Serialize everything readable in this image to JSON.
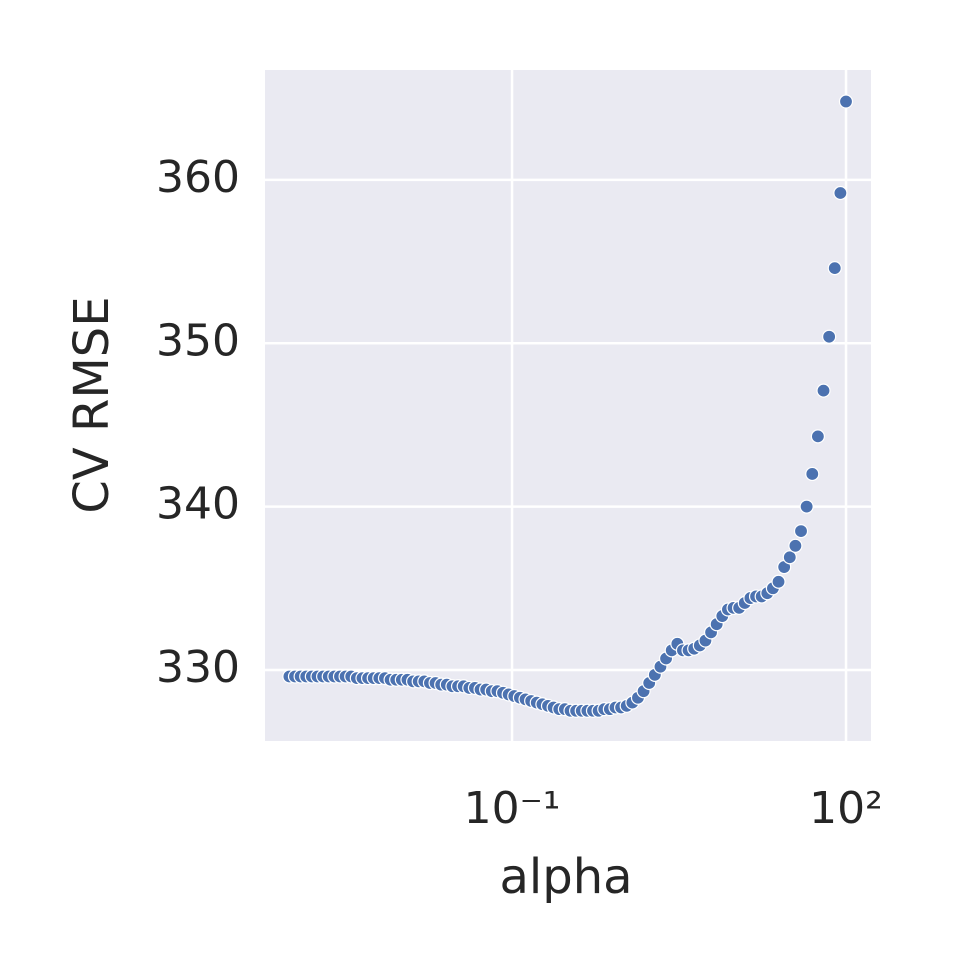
{
  "chart_data": {
    "type": "scatter",
    "xlabel": "alpha",
    "ylabel": "CV RMSE",
    "xscale": "log",
    "grid": true,
    "color": "#4c72b0",
    "xlim": [
      0.000604,
      167.7
    ],
    "ylim": [
      325.65,
      366.73
    ],
    "xticks": [
      {
        "value": 0.1,
        "label": "10⁻¹"
      },
      {
        "value": 100,
        "label": "10²"
      }
    ],
    "yticks": [
      330,
      340,
      350,
      360
    ],
    "x": [
      0.001,
      0.001123,
      0.001262,
      0.001417,
      0.001592,
      0.001789,
      0.002009,
      0.002257,
      0.002535,
      0.002848,
      0.003199,
      0.003594,
      0.004037,
      0.004535,
      0.005094,
      0.005722,
      0.006428,
      0.007221,
      0.008111,
      0.009112,
      0.01024,
      0.0115,
      0.01292,
      0.01451,
      0.0163,
      0.01831,
      0.02057,
      0.0231,
      0.02595,
      0.02915,
      0.03275,
      0.03678,
      0.04132,
      0.04642,
      0.05214,
      0.05857,
      0.06579,
      0.07391,
      0.08302,
      0.09326,
      0.1048,
      0.1177,
      0.1322,
      0.1485,
      0.1668,
      0.1874,
      0.2105,
      0.2364,
      0.2656,
      0.2984,
      0.3352,
      0.3765,
      0.4229,
      0.4751,
      0.5337,
      0.5995,
      0.6734,
      0.7565,
      0.8498,
      0.9546,
      1.072,
      1.205,
      1.353,
      1.52,
      1.707,
      1.918,
      2.154,
      2.42,
      2.719,
      3.054,
      3.43,
      3.853,
      4.329,
      4.863,
      5.462,
      6.136,
      6.893,
      7.743,
      8.697,
      9.77,
      10.97,
      12.33,
      13.85,
      15.56,
      17.48,
      19.63,
      22.05,
      24.77,
      27.83,
      31.26,
      35.11,
      39.44,
      44.31,
      49.77,
      55.91,
      62.8,
      70.55,
      79.25,
      89.02,
      100
    ],
    "y": [
      329.6,
      329.6,
      329.6,
      329.6,
      329.6,
      329.6,
      329.6,
      329.6,
      329.6,
      329.6,
      329.6,
      329.6,
      329.5,
      329.5,
      329.5,
      329.5,
      329.5,
      329.5,
      329.4,
      329.4,
      329.4,
      329.4,
      329.3,
      329.3,
      329.3,
      329.2,
      329.2,
      329.1,
      329.1,
      329.0,
      329.0,
      329.0,
      328.9,
      328.9,
      328.8,
      328.8,
      328.7,
      328.7,
      328.6,
      328.5,
      328.4,
      328.3,
      328.2,
      328.1,
      328.0,
      327.9,
      327.8,
      327.7,
      327.6,
      327.6,
      327.5,
      327.5,
      327.5,
      327.5,
      327.5,
      327.5,
      327.6,
      327.6,
      327.7,
      327.7,
      327.8,
      328.0,
      328.3,
      328.7,
      329.2,
      329.7,
      330.2,
      330.7,
      331.2,
      331.6,
      331.2,
      331.2,
      331.3,
      331.5,
      331.8,
      332.3,
      332.8,
      333.3,
      333.7,
      333.8,
      333.8,
      334.1,
      334.4,
      334.5,
      334.5,
      334.7,
      335.0,
      335.4,
      336.3,
      336.9,
      337.6,
      338.5,
      340.0,
      342.0,
      344.3,
      347.1,
      350.4,
      354.6,
      359.2,
      364.8
    ]
  }
}
